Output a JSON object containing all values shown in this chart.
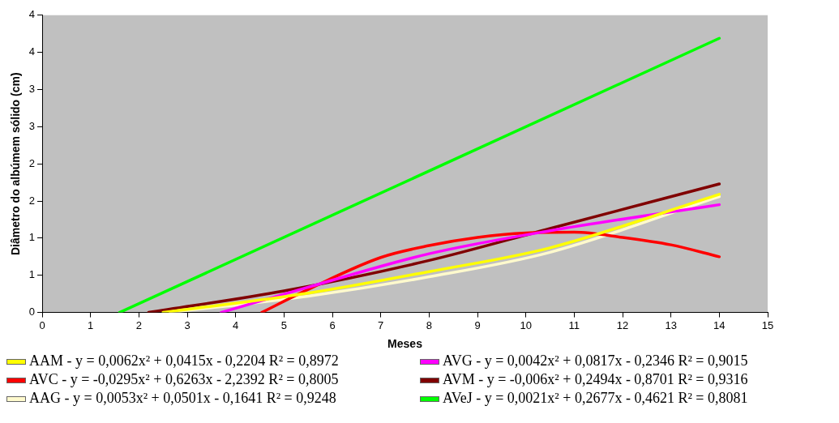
{
  "chart_data": {
    "type": "line",
    "xlabel": "Meses",
    "ylabel": "Diâmetro do albúmem sólido (cm)",
    "xlim": [
      0,
      15
    ],
    "xticks": [
      0,
      1,
      2,
      3,
      4,
      5,
      6,
      7,
      8,
      9,
      10,
      11,
      12,
      13,
      14,
      15
    ],
    "ylim": [
      0,
      4
    ],
    "yticks": [
      {
        "value": 0,
        "label": "0"
      },
      {
        "value": 0.5,
        "label": "1"
      },
      {
        "value": 1,
        "label": "1"
      },
      {
        "value": 1.5,
        "label": "2"
      },
      {
        "value": 2,
        "label": "2"
      },
      {
        "value": 2.5,
        "label": "3"
      },
      {
        "value": 3,
        "label": "3"
      },
      {
        "value": 3.5,
        "label": "4"
      },
      {
        "value": 4,
        "label": "4"
      }
    ],
    "grid": false,
    "legend": "bottom",
    "marker": "none",
    "line_style": "solid",
    "series": [
      {
        "name": "AAM",
        "color": "#ffff00",
        "x": [
          2.5,
          5.5,
          8,
          10.5,
          14
        ],
        "values": [
          0,
          0.26,
          0.55,
          0.87,
          1.59
        ]
      },
      {
        "name": "AVG",
        "color": "#ff00ff",
        "x": [
          3.7,
          5.5,
          8,
          10.5,
          14
        ],
        "values": [
          0,
          0.34,
          0.79,
          1.1,
          1.45
        ]
      },
      {
        "name": "AVC",
        "color": "#ff0000",
        "x": [
          4.54,
          5.5,
          7,
          8,
          9,
          10,
          11,
          12,
          13,
          14
        ],
        "values": [
          0,
          0.31,
          0.74,
          0.9,
          1.01,
          1.07,
          1.08,
          1.01,
          0.91,
          0.75
        ]
      },
      {
        "name": "AVM",
        "color": "#800000",
        "x": [
          2.2,
          5,
          8,
          10.5,
          14
        ],
        "values": [
          0,
          0.29,
          0.7,
          1.13,
          1.73
        ]
      },
      {
        "name": "AAG",
        "color": "#fffacd",
        "x": [
          2.65,
          5.5,
          8,
          10.5,
          14
        ],
        "values": [
          0,
          0.22,
          0.48,
          0.81,
          1.56
        ]
      },
      {
        "name": "AVeJ",
        "color": "#00ff00",
        "x": [
          1.6,
          14
        ],
        "values": [
          0,
          3.69
        ]
      }
    ],
    "annotations": [
      "- y = 0,0062x² + 0,0415x - 0,2204 R² = 0,8972",
      "- y = 0,0042x² + 0,0817x - 0,2346 R² = 0,9015",
      "- y = -0,0295x² + 0,6263x - 2,2392 R² = 0,8005",
      "- y = -0,006x² + 0,2494x - 0,8701 R² = 0,9316",
      "- y = 0,0053x² + 0,0501x - 0,1641 R² = 0,9248",
      "- y = 0,0021x² + 0,2677x - 0,4621 R² = 0,8081"
    ]
  }
}
